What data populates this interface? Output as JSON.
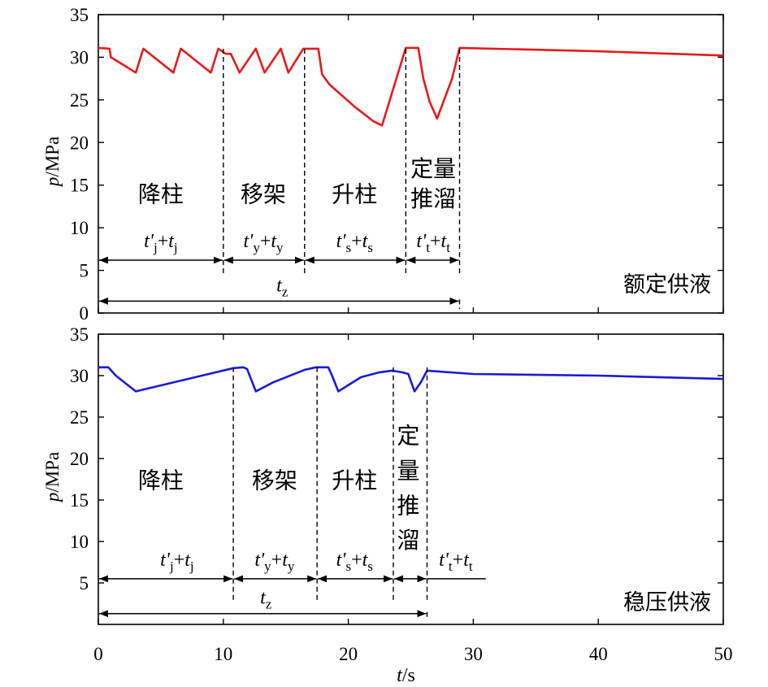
{
  "chart_data": {
    "type": "line",
    "xlabel": "t/s",
    "shared_xlim": [
      0,
      50
    ],
    "shared_xticks": [
      "0",
      "10",
      "20",
      "30",
      "40",
      "50"
    ],
    "panels": [
      {
        "ylabel": "p/MPa",
        "ylim": [
          0,
          35
        ],
        "yticks": [
          "0",
          "5",
          "10",
          "15",
          "20",
          "25",
          "30",
          "35"
        ],
        "mode_label": "额定供液",
        "line_color": "#e8191b",
        "series": [
          {
            "x": [
              0,
              0.9,
              1.0,
              3.0,
              3.6,
              6.0,
              6.6,
              9.0,
              9.6,
              10.2,
              10.6,
              11.3,
              12.6,
              13.3,
              14.6,
              15.2,
              16.4,
              17.6,
              17.9,
              18.5,
              20.5,
              22.0,
              22.7,
              24.6,
              25.6,
              26.0,
              26.5,
              27.1,
              28.3,
              28.9,
              40,
              50
            ],
            "y": [
              31.1,
              31.0,
              30.0,
              28.2,
              31.0,
              28.2,
              31.0,
              28.2,
              31.0,
              30.4,
              30.4,
              28.2,
              31.0,
              28.2,
              31.0,
              28.2,
              31.0,
              31.0,
              28.0,
              26.8,
              24.2,
              22.5,
              22.0,
              31.1,
              31.1,
              27.5,
              24.8,
              22.8,
              27.5,
              31.1,
              30.7,
              30.2
            ]
          }
        ],
        "dashed_lines_x": [
          10.0,
          16.5,
          24.6,
          28.9
        ],
        "phase_labels": [
          {
            "text": "降柱",
            "x": 5.0,
            "y": 13.0
          },
          {
            "text": "移架",
            "x": 13.2,
            "y": 13.0
          },
          {
            "text": "升柱",
            "x": 20.5,
            "y": 13.0
          },
          {
            "text": "定量",
            "x": 26.8,
            "y": 16.0
          },
          {
            "text": "推溜",
            "x": 26.8,
            "y": 12.5
          }
        ],
        "interval_labels": [
          {
            "a": "t'",
            "a_sub": "j",
            "b": "t",
            "b_sub": "j",
            "x": 5.0
          },
          {
            "a": "t'",
            "a_sub": "y",
            "b": "t",
            "b_sub": "y",
            "x": 13.2
          },
          {
            "a": "t'",
            "a_sub": "s",
            "b": "t",
            "b_sub": "s",
            "x": 20.5
          },
          {
            "a": "t'",
            "a_sub": "t",
            "b": "t",
            "b_sub": "t",
            "x": 26.8
          }
        ],
        "interval_ranges": [
          [
            0,
            10.0
          ],
          [
            10.0,
            16.5
          ],
          [
            16.5,
            24.6
          ],
          [
            24.6,
            28.9
          ]
        ],
        "interval_y": 6.2,
        "total_label": {
          "a": "t",
          "a_sub": "z"
        },
        "total_range": [
          0,
          28.9
        ],
        "total_y": 1.4
      },
      {
        "ylabel": "p/MPa",
        "ylim": [
          0,
          35
        ],
        "yticks": [
          "5",
          "10",
          "15",
          "20",
          "25",
          "30",
          "35"
        ],
        "mode_label": "稳压供液",
        "line_color": "#1a1ad6",
        "series": [
          {
            "x": [
              0,
              0.8,
              1.4,
              3.0,
              10.8,
              11.6,
              11.9,
              12.6,
              14.0,
              16.5,
              17.4,
              18.4,
              18.7,
              19.2,
              21.0,
              22.5,
              23.5,
              24.3,
              24.8,
              25.3,
              25.8,
              26.3,
              30,
              40,
              50
            ],
            "y": [
              31.0,
              31.0,
              30.0,
              28.1,
              30.9,
              31.0,
              30.8,
              28.1,
              29.2,
              30.7,
              31.0,
              31.0,
              30.0,
              28.1,
              29.8,
              30.4,
              30.6,
              30.4,
              30.2,
              28.1,
              29.2,
              30.6,
              30.2,
              30.0,
              29.6
            ]
          }
        ],
        "dashed_lines_x": [
          10.8,
          17.5,
          23.6,
          26.3
        ],
        "phase_labels": [
          {
            "text": "降柱",
            "x": 5.0,
            "y": 16.4
          },
          {
            "text": "移架",
            "x": 14.1,
            "y": 16.4
          },
          {
            "text": "升柱",
            "x": 20.5,
            "y": 16.4
          },
          {
            "text": "定",
            "x": 24.8,
            "y": 21.8
          },
          {
            "text": "量",
            "x": 24.8,
            "y": 17.6
          },
          {
            "text": "推",
            "x": 24.8,
            "y": 13.4
          },
          {
            "text": "溜",
            "x": 24.8,
            "y": 9.2
          }
        ],
        "interval_labels": [
          {
            "a": "t'",
            "a_sub": "j",
            "b": "t",
            "b_sub": "j",
            "x": 6.3
          },
          {
            "a": "t'",
            "a_sub": "y",
            "b": "t",
            "b_sub": "y",
            "x": 14.1
          },
          {
            "a": "t'",
            "a_sub": "s",
            "b": "t",
            "b_sub": "s",
            "x": 20.5
          },
          {
            "a": "t'",
            "a_sub": "t",
            "b": "t",
            "b_sub": "t",
            "x": 28.6
          }
        ],
        "interval_ranges": [
          [
            0,
            10.8
          ],
          [
            10.8,
            17.5
          ],
          [
            17.5,
            23.6
          ],
          [
            23.6,
            26.3
          ]
        ],
        "interval_tail": [
          26.3,
          31.0
        ],
        "interval_y": 5.5,
        "total_label": {
          "a": "t",
          "a_sub": "z"
        },
        "total_range": [
          0,
          26.3
        ],
        "total_y": 1.3
      }
    ]
  }
}
